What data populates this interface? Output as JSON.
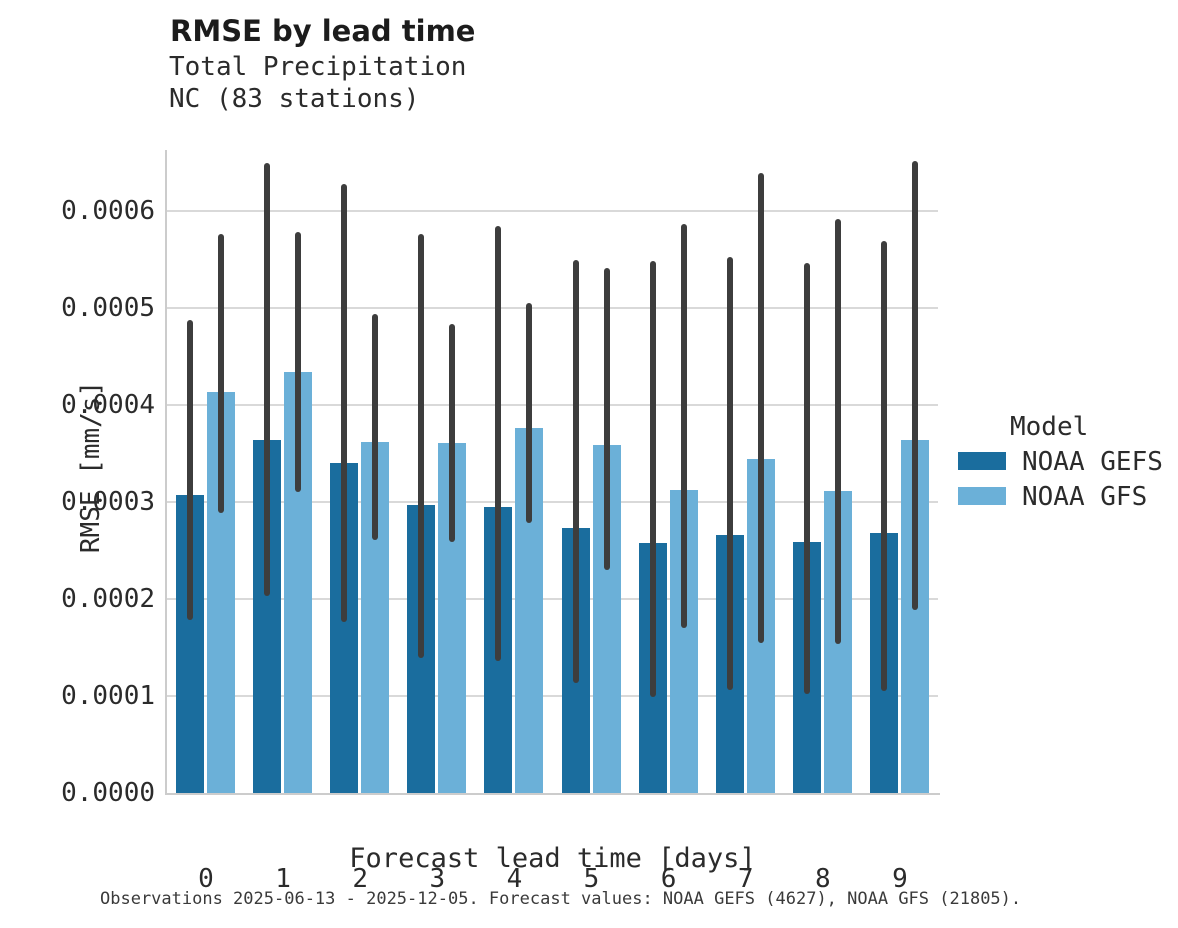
{
  "header": {
    "title": "RMSE by lead time",
    "subtitle_line1": "Total Precipitation",
    "subtitle_line2": "NC (83 stations)"
  },
  "caption": "Observations 2025-06-13 - 2025-12-05. Forecast values: NOAA GEFS (4627), NOAA GFS (21805).",
  "colors": {
    "gefs_bar": "#1a6d9e",
    "gfs_bar": "#6bb0d8",
    "error_bar": "#3d3d3d",
    "gridline": "#d9d9d9",
    "spine": "#cccccc",
    "text": "#2b2b2b"
  },
  "chart_data": {
    "type": "bar",
    "title": "RMSE by lead time",
    "subtitle": [
      "Total Precipitation",
      "NC (83 stations)"
    ],
    "xlabel": "Forecast lead time [days]",
    "ylabel": "RMSE [mm/s]",
    "categories": [
      "0",
      "1",
      "2",
      "3",
      "4",
      "5",
      "6",
      "7",
      "8",
      "9"
    ],
    "ytick_values": [
      0.0,
      0.0001,
      0.0002,
      0.0003,
      0.0004,
      0.0005,
      0.0006
    ],
    "ytick_labels": [
      "0.0000",
      "0.0001",
      "0.0002",
      "0.0003",
      "0.0004",
      "0.0005",
      "0.0006"
    ],
    "ylim": [
      0,
      0.000663
    ],
    "grid": "horizontal",
    "legend": {
      "title": "Model",
      "position": "right"
    },
    "series": [
      {
        "name": "NOAA GEFS",
        "color": "#1a6d9e",
        "values": [
          0.000307,
          0.000364,
          0.00034,
          0.000297,
          0.000295,
          0.000273,
          0.000258,
          0.000266,
          0.000259,
          0.000268
        ],
        "err_lo": [
          0.000178,
          0.000203,
          0.000176,
          0.000139,
          0.000136,
          0.000113,
          9.9e-05,
          0.000106,
          0.000102,
          0.000105
        ],
        "err_hi": [
          0.000488,
          0.00065,
          0.000628,
          0.000576,
          0.000585,
          0.00055,
          0.000549,
          0.000553,
          0.000547,
          0.000569
        ]
      },
      {
        "name": "NOAA GFS",
        "color": "#6bb0d8",
        "values": [
          0.000413,
          0.000434,
          0.000362,
          0.000361,
          0.000376,
          0.000359,
          0.000312,
          0.000344,
          0.000311,
          0.000364
        ],
        "err_lo": [
          0.000289,
          0.00031,
          0.000261,
          0.000259,
          0.000278,
          0.00023,
          0.00017,
          0.000155,
          0.000154,
          0.000189
        ],
        "err_hi": [
          0.000576,
          0.000578,
          0.000494,
          0.000484,
          0.000505,
          0.000541,
          0.000587,
          0.000639,
          0.000592,
          0.000652
        ]
      }
    ]
  }
}
